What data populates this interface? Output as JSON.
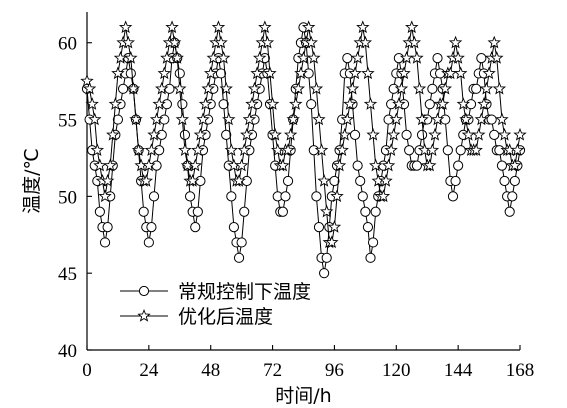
{
  "chart_data": {
    "type": "line",
    "xlabel": "时间/h",
    "ylabel": "温度/℃",
    "xlim": [
      0,
      168
    ],
    "ylim": [
      40,
      62
    ],
    "xticks": [
      0,
      24,
      48,
      72,
      96,
      120,
      144,
      168
    ],
    "yticks": [
      40,
      45,
      50,
      55,
      60
    ],
    "grid": false,
    "legend_position": "bottom-left",
    "series": [
      {
        "name": "常规控制下温度",
        "marker": "circle",
        "x": [
          0,
          1,
          2,
          3,
          4,
          5,
          6,
          7,
          8,
          9,
          10,
          11,
          12,
          13,
          14,
          15,
          16,
          17,
          18,
          19,
          20,
          21,
          22,
          23,
          24,
          25,
          26,
          27,
          28,
          29,
          30,
          31,
          32,
          33,
          34,
          35,
          36,
          37,
          38,
          39,
          40,
          41,
          42,
          43,
          44,
          45,
          46,
          47,
          48,
          49,
          50,
          51,
          52,
          53,
          54,
          55,
          56,
          57,
          58,
          59,
          60,
          61,
          62,
          63,
          64,
          65,
          66,
          67,
          68,
          69,
          70,
          71,
          72,
          73,
          74,
          75,
          76,
          77,
          78,
          79,
          80,
          81,
          82,
          83,
          84,
          85,
          86,
          87,
          88,
          89,
          90,
          91,
          92,
          93,
          94,
          95,
          96,
          97,
          98,
          99,
          100,
          101,
          102,
          103,
          104,
          105,
          106,
          107,
          108,
          109,
          110,
          111,
          112,
          113,
          114,
          115,
          116,
          117,
          118,
          119,
          120,
          121,
          122,
          123,
          124,
          125,
          126,
          127,
          128,
          129,
          130,
          131,
          132,
          133,
          134,
          135,
          136,
          137,
          138,
          139,
          140,
          141,
          142,
          143,
          144,
          145,
          146,
          147,
          148,
          149,
          150,
          151,
          152,
          153,
          154,
          155,
          156,
          157,
          158,
          159,
          160,
          161,
          162,
          163,
          164,
          165,
          166,
          167,
          168
        ],
        "values": [
          57,
          55,
          53,
          52,
          51,
          49,
          48,
          47,
          48,
          50,
          52,
          54,
          55,
          56,
          57,
          58,
          59,
          58,
          57,
          55,
          53,
          51,
          49,
          48,
          47,
          48,
          50,
          52,
          53,
          54,
          55,
          56,
          57,
          59,
          60,
          59,
          58,
          56,
          54,
          52,
          50,
          49,
          48,
          49,
          51,
          53,
          54,
          55,
          56,
          57,
          58,
          59,
          58,
          56,
          54,
          52,
          50,
          48,
          47,
          46,
          47,
          49,
          51,
          53,
          54,
          55,
          56,
          57,
          58,
          59,
          58,
          56,
          54,
          52,
          50,
          49,
          49,
          50,
          51,
          53,
          55,
          57,
          59,
          60,
          61,
          60,
          58,
          56,
          53,
          50,
          48,
          46,
          45,
          46,
          48,
          50,
          51,
          52,
          53,
          55,
          58,
          59,
          58,
          56,
          54,
          52,
          51,
          50,
          49,
          48,
          46,
          47,
          49,
          50,
          51,
          52,
          53,
          55,
          56,
          57,
          58,
          59,
          58,
          56,
          54,
          53,
          52,
          52,
          52,
          53,
          54,
          55,
          55,
          56,
          57,
          58,
          59,
          58,
          57,
          55,
          53,
          51,
          50,
          51,
          52,
          53,
          54,
          55,
          55,
          56,
          57,
          57,
          58,
          59,
          58,
          56,
          55,
          55,
          54,
          53,
          53,
          52,
          51,
          50,
          49,
          50,
          51,
          52,
          53
        ]
      },
      {
        "name": "优化后温度",
        "marker": "star",
        "x": [
          0,
          1,
          2,
          3,
          4,
          5,
          6,
          7,
          8,
          9,
          10,
          11,
          12,
          13,
          14,
          15,
          16,
          17,
          18,
          19,
          20,
          21,
          22,
          23,
          24,
          25,
          26,
          27,
          28,
          29,
          30,
          31,
          32,
          33,
          34,
          35,
          36,
          37,
          38,
          39,
          40,
          41,
          42,
          43,
          44,
          45,
          46,
          47,
          48,
          49,
          50,
          51,
          52,
          53,
          54,
          55,
          56,
          57,
          58,
          59,
          60,
          61,
          62,
          63,
          64,
          65,
          66,
          67,
          68,
          69,
          70,
          71,
          72,
          73,
          74,
          75,
          76,
          77,
          78,
          79,
          80,
          81,
          82,
          83,
          84,
          85,
          86,
          87,
          88,
          89,
          90,
          91,
          92,
          93,
          94,
          95,
          96,
          97,
          98,
          99,
          100,
          101,
          102,
          103,
          104,
          105,
          106,
          107,
          108,
          109,
          110,
          111,
          112,
          113,
          114,
          115,
          116,
          117,
          118,
          119,
          120,
          121,
          122,
          123,
          124,
          125,
          126,
          127,
          128,
          129,
          130,
          131,
          132,
          133,
          134,
          135,
          136,
          137,
          138,
          139,
          140,
          141,
          142,
          143,
          144,
          145,
          146,
          147,
          148,
          149,
          150,
          151,
          152,
          153,
          154,
          155,
          156,
          157,
          158,
          159,
          160,
          161,
          162,
          163,
          164,
          165,
          166,
          167,
          168
        ],
        "values": [
          57.5,
          57,
          56,
          55,
          53,
          52,
          51,
          50,
          51,
          52,
          54,
          56,
          58,
          59,
          60,
          61,
          60,
          59,
          57,
          55,
          53,
          52,
          51,
          51,
          52,
          53,
          54,
          55,
          56,
          57,
          58,
          59,
          60,
          61,
          60,
          59,
          57,
          55,
          53,
          52,
          51,
          51,
          52,
          53,
          54,
          55,
          56,
          57,
          58,
          59,
          60,
          61,
          60,
          59,
          57,
          55,
          53,
          52,
          51,
          51,
          52,
          53,
          54,
          55,
          56,
          57,
          58,
          59,
          60,
          61,
          60,
          58,
          56,
          54,
          53,
          52,
          52,
          53,
          53,
          54,
          55,
          56,
          57,
          58,
          59,
          60,
          61,
          60,
          59,
          57,
          55,
          53,
          51,
          49,
          47,
          47,
          48,
          50,
          52,
          53,
          54,
          55,
          56,
          57,
          58,
          59,
          60,
          61,
          60,
          58,
          56,
          54,
          52,
          51,
          50,
          50,
          51,
          52,
          53,
          54,
          55,
          56,
          57,
          58,
          59,
          60,
          61,
          60,
          59,
          57,
          55,
          53,
          52,
          52,
          53,
          54,
          55,
          56,
          56,
          57,
          58,
          58,
          59,
          60,
          59,
          58,
          56,
          55,
          54,
          53,
          53,
          53,
          54,
          55,
          56,
          57,
          58,
          59,
          60,
          59,
          57,
          55,
          54,
          53,
          53,
          52,
          52,
          53,
          54
        ]
      }
    ]
  }
}
